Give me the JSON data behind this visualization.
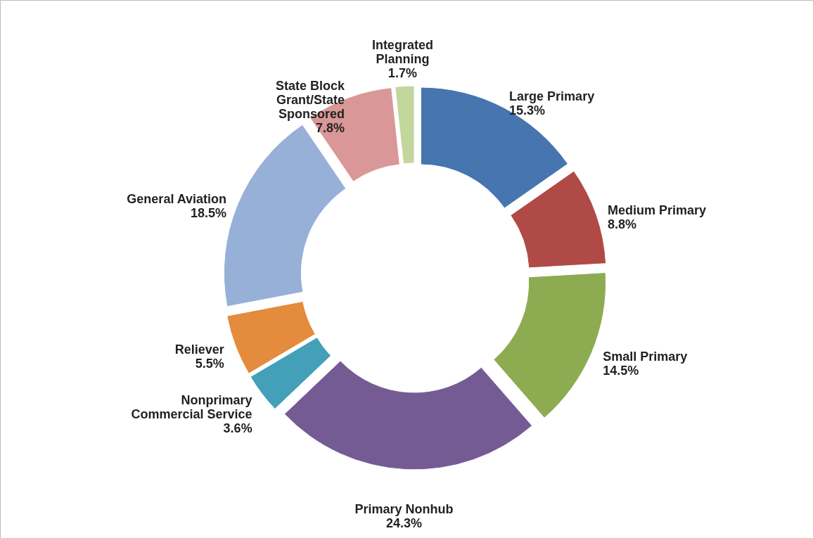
{
  "chart_data": {
    "type": "donut",
    "categories": [
      "Large Primary",
      "Medium Primary",
      "Small Primary",
      "Primary Nonhub",
      "Nonprimary\nCommercial Service",
      "Reliever",
      "General Aviation",
      "State Block\nGrant/State\nSponsored",
      "Integrated\nPlanning"
    ],
    "values": [
      15.3,
      8.8,
      14.5,
      24.3,
      3.6,
      5.5,
      18.5,
      7.8,
      1.7
    ],
    "colors": [
      "#4675b0",
      "#b04a47",
      "#8dac52",
      "#755b94",
      "#43a0b8",
      "#e48b3e",
      "#97b0d8",
      "#d99897",
      "#c3d69b"
    ],
    "value_labels": [
      "15.3%",
      "8.8%",
      "14.5%",
      "24.3%",
      "3.6%",
      "5.5%",
      "18.5%",
      "7.8%",
      "1.7%"
    ]
  }
}
